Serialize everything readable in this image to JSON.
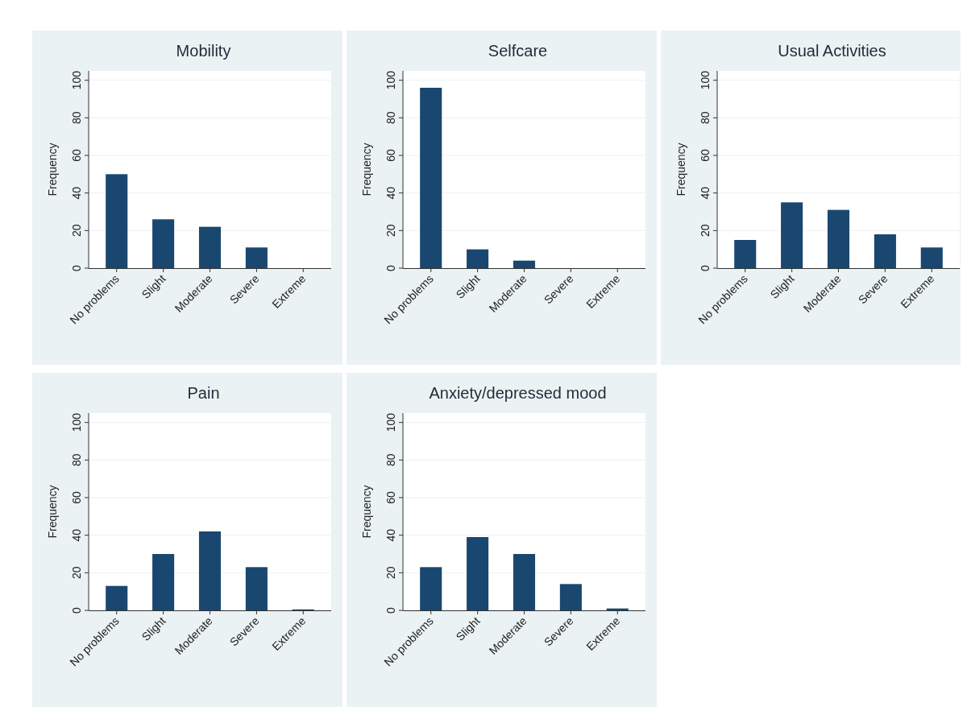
{
  "chart_data": [
    {
      "type": "bar",
      "title": "Mobility",
      "ylabel": "Frequency",
      "categories": [
        "No problems",
        "Slight",
        "Moderate",
        "Severe",
        "Extreme"
      ],
      "values": [
        50,
        26,
        22,
        11,
        0
      ],
      "color": "#1a476f",
      "ylim": [
        0,
        105
      ],
      "yticks": [
        0,
        20,
        40,
        60,
        80,
        100
      ],
      "grid": "y"
    },
    {
      "type": "bar",
      "title": "Selfcare",
      "ylabel": "Frequency",
      "categories": [
        "No problems",
        "Slight",
        "Moderate",
        "Severe",
        "Extreme"
      ],
      "values": [
        96,
        10,
        4,
        0,
        0
      ],
      "color": "#1a476f",
      "ylim": [
        0,
        105
      ],
      "yticks": [
        0,
        20,
        40,
        60,
        80,
        100
      ],
      "grid": "y"
    },
    {
      "type": "bar",
      "title": "Usual Activities",
      "ylabel": "Frequency",
      "categories": [
        "No problems",
        "Slight",
        "Moderate",
        "Severe",
        "Extreme"
      ],
      "values": [
        15,
        35,
        31,
        18,
        11
      ],
      "color": "#1a476f",
      "ylim": [
        0,
        105
      ],
      "yticks": [
        0,
        20,
        40,
        60,
        80,
        100
      ],
      "grid": "y"
    },
    {
      "type": "bar",
      "title": "Pain",
      "ylabel": "Frequency",
      "categories": [
        "No problems",
        "Slight",
        "Moderate",
        "Severe",
        "Extreme"
      ],
      "values": [
        13,
        30,
        42,
        23,
        0.5
      ],
      "color": "#1a476f",
      "ylim": [
        0,
        105
      ],
      "yticks": [
        0,
        20,
        40,
        60,
        80,
        100
      ],
      "grid": "y"
    },
    {
      "type": "bar",
      "title": "Anxiety/depressed mood",
      "ylabel": "Frequency",
      "categories": [
        "No problems",
        "Slight",
        "Moderate",
        "Severe",
        "Extreme"
      ],
      "values": [
        23,
        39,
        30,
        14,
        1
      ],
      "color": "#1a476f",
      "ylim": [
        0,
        105
      ],
      "yticks": [
        0,
        20,
        40,
        60,
        80,
        100
      ],
      "grid": "y"
    }
  ]
}
